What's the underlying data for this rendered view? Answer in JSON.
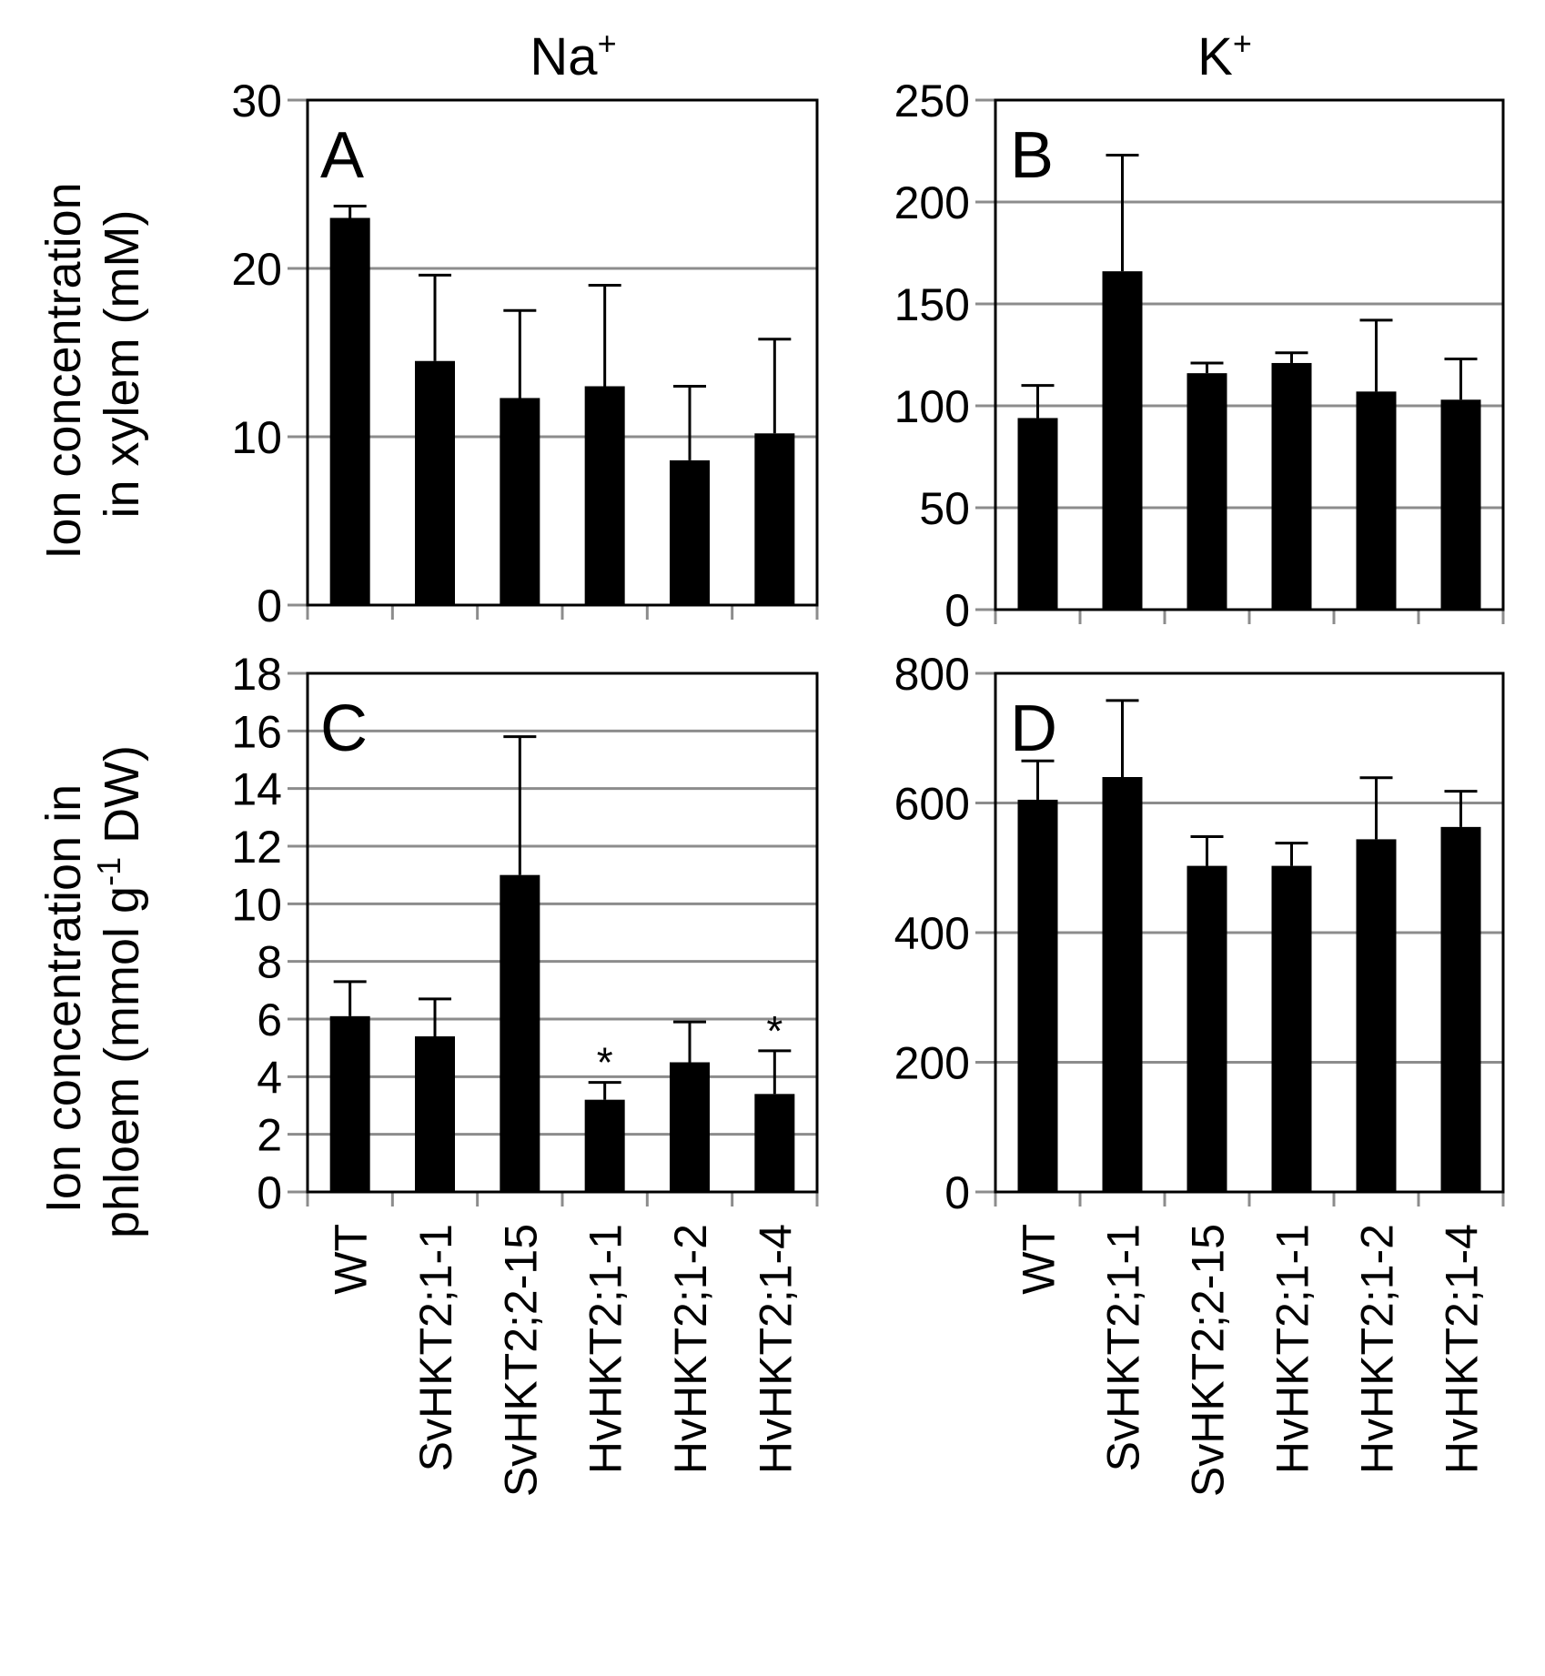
{
  "figure": {
    "categories": [
      "WT",
      "SvHKT2;1-1",
      "SvHKT2;2-15",
      "HvHKT2;1-1",
      "HvHKT2;1-2",
      "HvHKT2;1-4"
    ]
  },
  "columns": [
    {
      "title": "Na",
      "sup": "+"
    },
    {
      "title": "K",
      "sup": "+"
    }
  ],
  "ylabels": {
    "top": {
      "line1": "Ion concentration",
      "line2": "in xylem (mM)"
    },
    "bottom": {
      "line1": "Ion concentration in",
      "line2a": "phloem (mmol g",
      "line2sup": "-1",
      "line2b": " DW)"
    }
  },
  "chart_data": [
    {
      "panel": "A",
      "type": "bar",
      "ion": "Na+",
      "tissue": "xylem",
      "categories": [
        "WT",
        "SvHKT2;1-1",
        "SvHKT2;2-15",
        "HvHKT2;1-1",
        "HvHKT2;1-2",
        "HvHKT2;1-4"
      ],
      "values": [
        23,
        14.5,
        12.3,
        13,
        8.6,
        10.2
      ],
      "errors": [
        0.7,
        5.1,
        5.2,
        6,
        4.4,
        5.6
      ],
      "significance": [
        "",
        "",
        "",
        "",
        "",
        ""
      ],
      "ylim": [
        0,
        30
      ],
      "yticks": [
        0,
        10,
        20,
        30
      ],
      "ylabel": "Ion concentration in xylem (mM)"
    },
    {
      "panel": "B",
      "type": "bar",
      "ion": "K+",
      "tissue": "xylem",
      "categories": [
        "WT",
        "SvHKT2;1-1",
        "SvHKT2;2-15",
        "HvHKT2;1-1",
        "HvHKT2;1-2",
        "HvHKT2;1-4"
      ],
      "values": [
        94,
        166,
        116,
        121,
        107,
        103
      ],
      "errors": [
        16,
        57,
        5,
        5,
        35,
        20
      ],
      "significance": [
        "",
        "",
        "",
        "",
        "",
        ""
      ],
      "ylim": [
        0,
        250
      ],
      "yticks": [
        0,
        50,
        100,
        150,
        200,
        250
      ],
      "ylabel": ""
    },
    {
      "panel": "C",
      "type": "bar",
      "ion": "Na+",
      "tissue": "phloem",
      "categories": [
        "WT",
        "SvHKT2;1-1",
        "SvHKT2;2-15",
        "HvHKT2;1-1",
        "HvHKT2;1-2",
        "HvHKT2;1-4"
      ],
      "values": [
        6.1,
        5.4,
        11,
        3.2,
        4.5,
        3.4
      ],
      "errors": [
        1.2,
        1.3,
        4.8,
        0.6,
        1.4,
        1.5
      ],
      "significance": [
        "",
        "",
        "",
        "*",
        "",
        "*"
      ],
      "ylim": [
        0,
        18
      ],
      "yticks": [
        0,
        2,
        4,
        6,
        8,
        10,
        12,
        14,
        16,
        18
      ],
      "ylabel": "Ion concentration in phloem (mmol g-1 DW)"
    },
    {
      "panel": "D",
      "type": "bar",
      "ion": "K+",
      "tissue": "phloem",
      "categories": [
        "WT",
        "SvHKT2;1-1",
        "SvHKT2;2-15",
        "HvHKT2;1-1",
        "HvHKT2;1-2",
        "HvHKT2;1-4"
      ],
      "values": [
        605,
        640,
        503,
        503,
        544,
        563
      ],
      "errors": [
        60,
        118,
        45,
        35,
        95,
        55
      ],
      "significance": [
        "",
        "",
        "",
        "",
        "",
        ""
      ],
      "ylim": [
        0,
        800
      ],
      "yticks": [
        0,
        200,
        400,
        600,
        800
      ],
      "ylabel": ""
    }
  ]
}
